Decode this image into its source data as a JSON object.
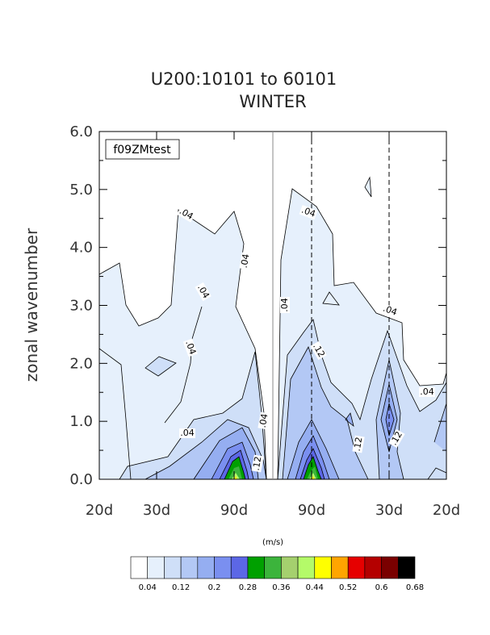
{
  "chart_data": {
    "type": "heatmap",
    "title": "U200:10101 to 60101",
    "subtitle": "WINTER",
    "case_label": "f09ZMtest",
    "ylabel": "zonal wavenumber",
    "xlabel": "",
    "ylim": [
      0,
      6
    ],
    "yticks": [
      "0.0",
      "1.0",
      "2.0",
      "3.0",
      "4.0",
      "5.0",
      "6.0"
    ],
    "xticks": [
      "20d",
      "30d",
      "90d",
      "90d",
      "30d",
      "20d"
    ],
    "units": "(m/s)",
    "colorbar": {
      "levels": [
        "0.04",
        "0.12",
        "0.2",
        "0.28",
        "0.36",
        "0.44",
        "0.52",
        "0.6",
        "0.68"
      ],
      "colors": [
        "#ffffff",
        "#e6f0fc",
        "#cfdff8",
        "#b3c8f5",
        "#95aef1",
        "#7a8ff0",
        "#5c67e6",
        "#00a000",
        "#3cb43c",
        "#a5d06e",
        "#b4fa69",
        "#ffff00",
        "#ffa500",
        "#e60000",
        "#b40000",
        "#7a0000",
        "#000000"
      ]
    },
    "contour_labels": [
      ".04",
      ".04",
      ".04",
      ".04",
      ".04",
      ".04",
      ".04",
      ".04",
      ".04",
      ".04",
      ".12",
      ".12",
      ".12",
      ".12"
    ],
    "peaks": [
      {
        "side": "westward",
        "period_d": 90,
        "wavenumber": 0,
        "value": 0.52
      },
      {
        "side": "eastward",
        "period_d": 90,
        "wavenumber": 0,
        "value": 0.52
      },
      {
        "side": "eastward",
        "period_d": 30,
        "wavenumber": 1,
        "value": 0.28
      }
    ]
  }
}
